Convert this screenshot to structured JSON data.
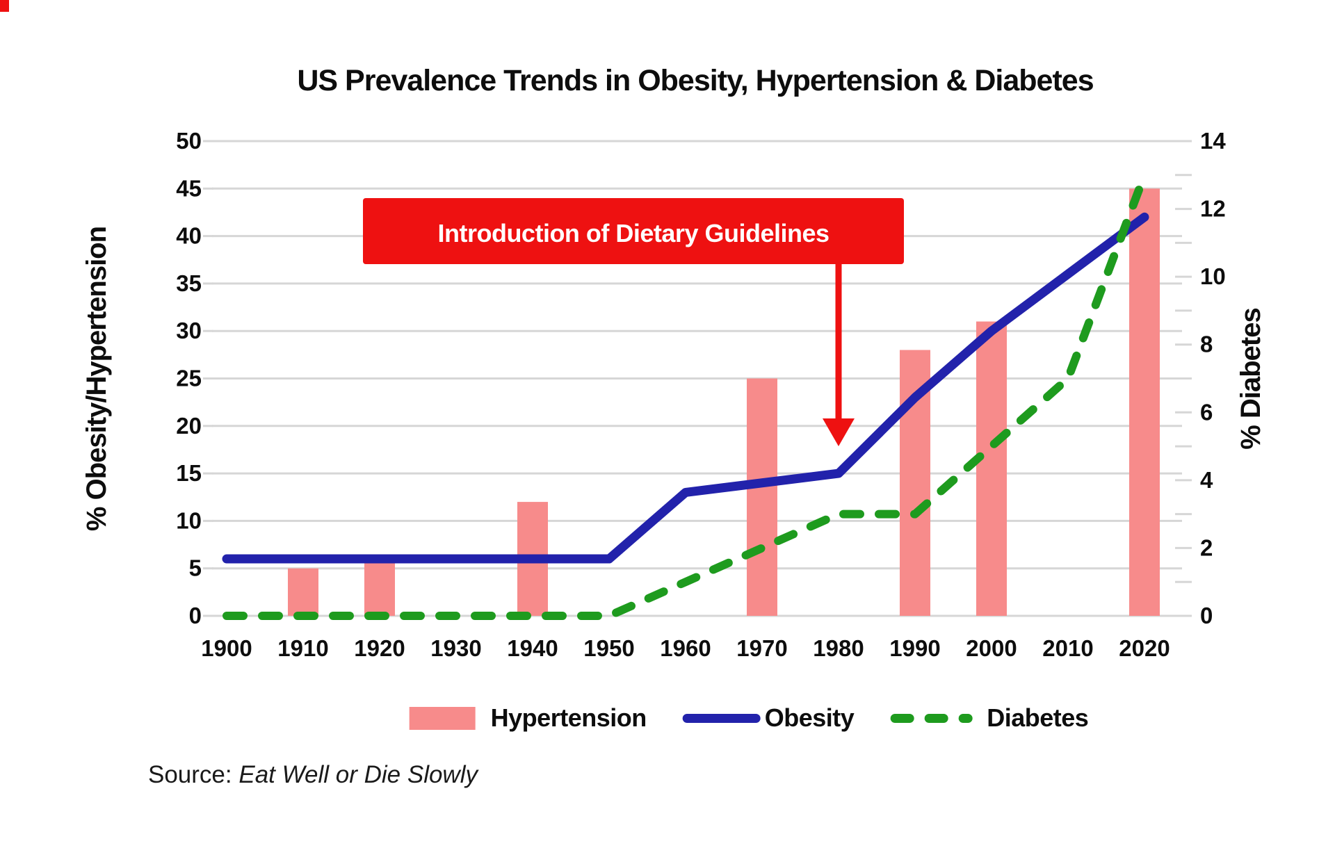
{
  "title": "US Prevalence Trends in Obesity, Hypertension & Diabetes",
  "annotation": {
    "label": "Introduction of Dietary Guidelines",
    "arrow_target_year": 1980,
    "box_color": "#ee1111",
    "text_color": "#ffffff"
  },
  "source": {
    "prefix": "Source: ",
    "citation": "Eat Well or Die Slowly"
  },
  "legend": [
    {
      "label": "Hypertension",
      "swatch": "bar",
      "color": "#f78b8b"
    },
    {
      "label": "Obesity",
      "swatch": "line",
      "color": "#2222ab"
    },
    {
      "label": "Diabetes",
      "swatch": "dashed-line",
      "color": "#1e9b1e"
    }
  ],
  "colors": {
    "hypertension": "#f78b8b",
    "obesity": "#2222ab",
    "diabetes": "#1e9b1e",
    "annotation_red": "#ee1111",
    "gridline": "#d6d6d6",
    "text": "#0d0d0d"
  },
  "chart_data": {
    "type": "combo (bar + line + dashed line)",
    "categories": [
      1900,
      1910,
      1920,
      1930,
      1940,
      1950,
      1960,
      1970,
      1980,
      1990,
      2000,
      2010,
      2020
    ],
    "series": [
      {
        "name": "Hypertension",
        "type": "bar",
        "axis": "left",
        "color": "#f78b8b",
        "values": [
          null,
          5,
          6,
          null,
          12,
          null,
          null,
          25,
          null,
          28,
          31,
          null,
          45
        ]
      },
      {
        "name": "Obesity",
        "type": "line",
        "axis": "left",
        "color": "#2222ab",
        "values": [
          6,
          6,
          6,
          6,
          6,
          6,
          13,
          14,
          15,
          23,
          30,
          36,
          42
        ]
      },
      {
        "name": "Diabetes",
        "type": "dashed-line",
        "axis": "right",
        "color": "#1e9b1e",
        "values": [
          0,
          0,
          0,
          0,
          0,
          0,
          1,
          2,
          3,
          3,
          5,
          7,
          13
        ]
      }
    ],
    "left_axis": {
      "label": "% Obesity/Hypertension",
      "min": 0,
      "max": 50,
      "tick_step": 5,
      "ticks": [
        0,
        5,
        10,
        15,
        20,
        25,
        30,
        35,
        40,
        45,
        50
      ]
    },
    "right_axis": {
      "label": "% Diabetes",
      "min": 0,
      "max": 14,
      "tick_step": 2,
      "minor_tick_step": 1,
      "ticks": [
        0,
        2,
        4,
        6,
        8,
        10,
        12,
        14
      ]
    },
    "grid": true,
    "legend_position": "bottom"
  }
}
